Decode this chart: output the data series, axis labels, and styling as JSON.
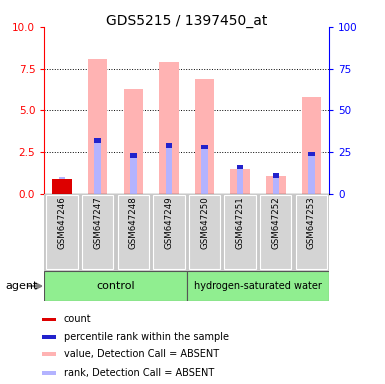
{
  "title": "GDS5215 / 1397450_at",
  "samples": [
    "GSM647246",
    "GSM647247",
    "GSM647248",
    "GSM647249",
    "GSM647250",
    "GSM647251",
    "GSM647252",
    "GSM647253"
  ],
  "value_absent": [
    0.9,
    8.1,
    6.3,
    7.9,
    6.9,
    1.5,
    1.1,
    5.8
  ],
  "rank_absent": [
    1.0,
    3.2,
    2.3,
    2.9,
    2.8,
    1.6,
    1.1,
    2.4
  ],
  "count_val": [
    0.9,
    0.0,
    0.0,
    0.0,
    0.0,
    0.0,
    0.0,
    0.0
  ],
  "rank_dark": [
    0.0,
    3.2,
    2.3,
    2.9,
    2.8,
    1.6,
    1.1,
    2.4
  ],
  "ylim_left": [
    0,
    10
  ],
  "ylim_right": [
    0,
    100
  ],
  "yticks_left": [
    0,
    2.5,
    5,
    7.5,
    10
  ],
  "yticks_right": [
    0,
    25,
    50,
    75,
    100
  ],
  "color_value_absent": "#ffb3b3",
  "color_rank_absent": "#b3b3ff",
  "color_count": "#dd0000",
  "color_rank_dark": "#2222cc",
  "color_gray_box": "#c8c8c8",
  "color_green": "#90ee90",
  "legend_items": [
    {
      "label": "count",
      "color": "#dd0000"
    },
    {
      "label": "percentile rank within the sample",
      "color": "#2222cc"
    },
    {
      "label": "value, Detection Call = ABSENT",
      "color": "#ffb3b3"
    },
    {
      "label": "rank, Detection Call = ABSENT",
      "color": "#b3b3ff"
    }
  ],
  "agent_label": "agent",
  "figw": 3.85,
  "figh": 3.84,
  "dpi": 100
}
